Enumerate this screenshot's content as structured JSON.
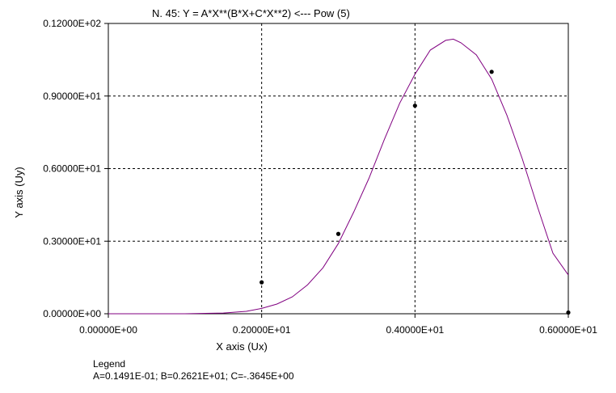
{
  "chart_data": {
    "type": "scatter",
    "title": "N.  45:   Y = A*X**(B*X+C*X**2) <--- Pow (5)",
    "xlabel": "X axis (Ux)",
    "ylabel": "Y axis (Uy)",
    "xlim": [
      0,
      6
    ],
    "ylim": [
      0,
      12
    ],
    "x_ticks": [
      0,
      2,
      4,
      6
    ],
    "x_tick_labels": [
      "0.00000E+00",
      "0.20000E+01",
      "0.40000E+01",
      "0.60000E+01"
    ],
    "y_ticks": [
      0,
      3,
      6,
      9,
      12
    ],
    "y_tick_labels": [
      "0.00000E+00",
      "0.30000E+01",
      "0.60000E+01",
      "0.90000E+01",
      "0.12000E+02"
    ],
    "grid": true,
    "series": [
      {
        "kind": "points",
        "color": "#000000",
        "x": [
          2,
          3,
          4,
          5,
          6
        ],
        "y": [
          1.3,
          3.3,
          8.6,
          10.0,
          0.05
        ]
      },
      {
        "kind": "fit",
        "color": "#800080",
        "x": [
          0,
          1,
          1.5,
          1.8,
          2.0,
          2.2,
          2.4,
          2.6,
          2.8,
          3.0,
          3.2,
          3.4,
          3.6,
          3.8,
          4.0,
          4.2,
          4.4,
          4.5,
          4.6,
          4.8,
          5.0,
          5.2,
          5.4,
          5.6,
          5.8,
          6.0
        ],
        "y": [
          0,
          0,
          0.03,
          0.1,
          0.22,
          0.4,
          0.7,
          1.2,
          1.9,
          2.9,
          4.2,
          5.6,
          7.2,
          8.7,
          9.9,
          10.9,
          11.3,
          11.35,
          11.2,
          10.7,
          9.7,
          8.2,
          6.4,
          4.4,
          2.5,
          1.6
        ]
      }
    ],
    "legend": {
      "title": "Legend",
      "text": "A=0.1491E-01;  B=0.2621E+01;  C=-.3645E+00",
      "placement": "bottom-left"
    }
  }
}
